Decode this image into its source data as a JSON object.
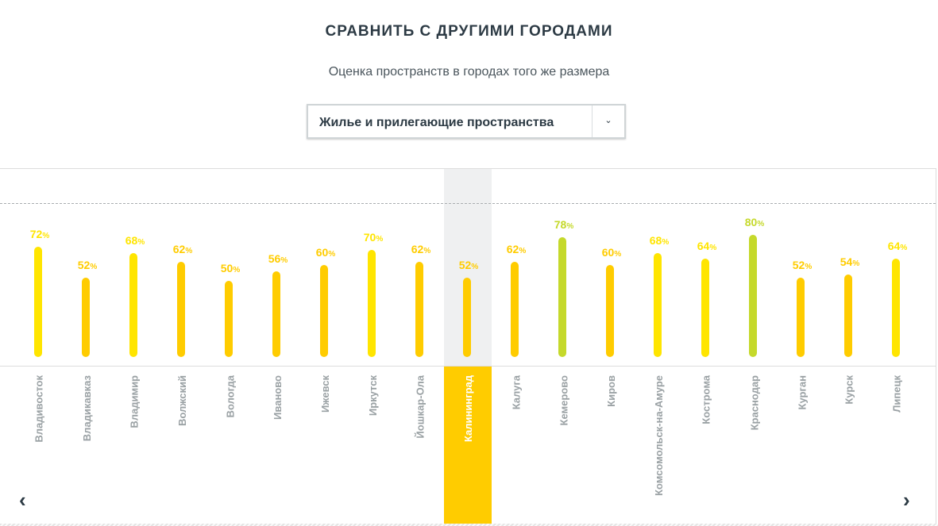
{
  "header": {
    "title": "СРАВНИТЬ С ДРУГИМИ ГОРОДАМИ",
    "subtitle": "Оценка пространств в городах того же размера"
  },
  "select": {
    "value": "Жилье и прилегающие пространства",
    "icon": "chevron-down-icon"
  },
  "nav": {
    "prev": "‹",
    "next": "›"
  },
  "colors": {
    "high": "#c5d92b",
    "mid": "#ffe500",
    "low": "#ffcc00",
    "active": "#ffcc00"
  },
  "chart_data": {
    "type": "bar",
    "title": "Оценка пространств в городах того же размера",
    "ylim": [
      0,
      100
    ],
    "unit": "%",
    "highlighted": "Калининград",
    "categories": [
      "Владивосток",
      "Владикавказ",
      "Владимир",
      "Волжский",
      "Вологда",
      "Иваново",
      "Ижевск",
      "Иркутск",
      "Йошкар-Ола",
      "Калининград",
      "Калуга",
      "Кемерово",
      "Киров",
      "Комсомольск-на-Амуре",
      "Кострома",
      "Краснодар",
      "Курган",
      "Курск",
      "Липецк"
    ],
    "values": [
      72,
      52,
      68,
      62,
      50,
      56,
      60,
      70,
      62,
      52,
      62,
      78,
      60,
      68,
      64,
      80,
      52,
      54,
      64
    ]
  }
}
